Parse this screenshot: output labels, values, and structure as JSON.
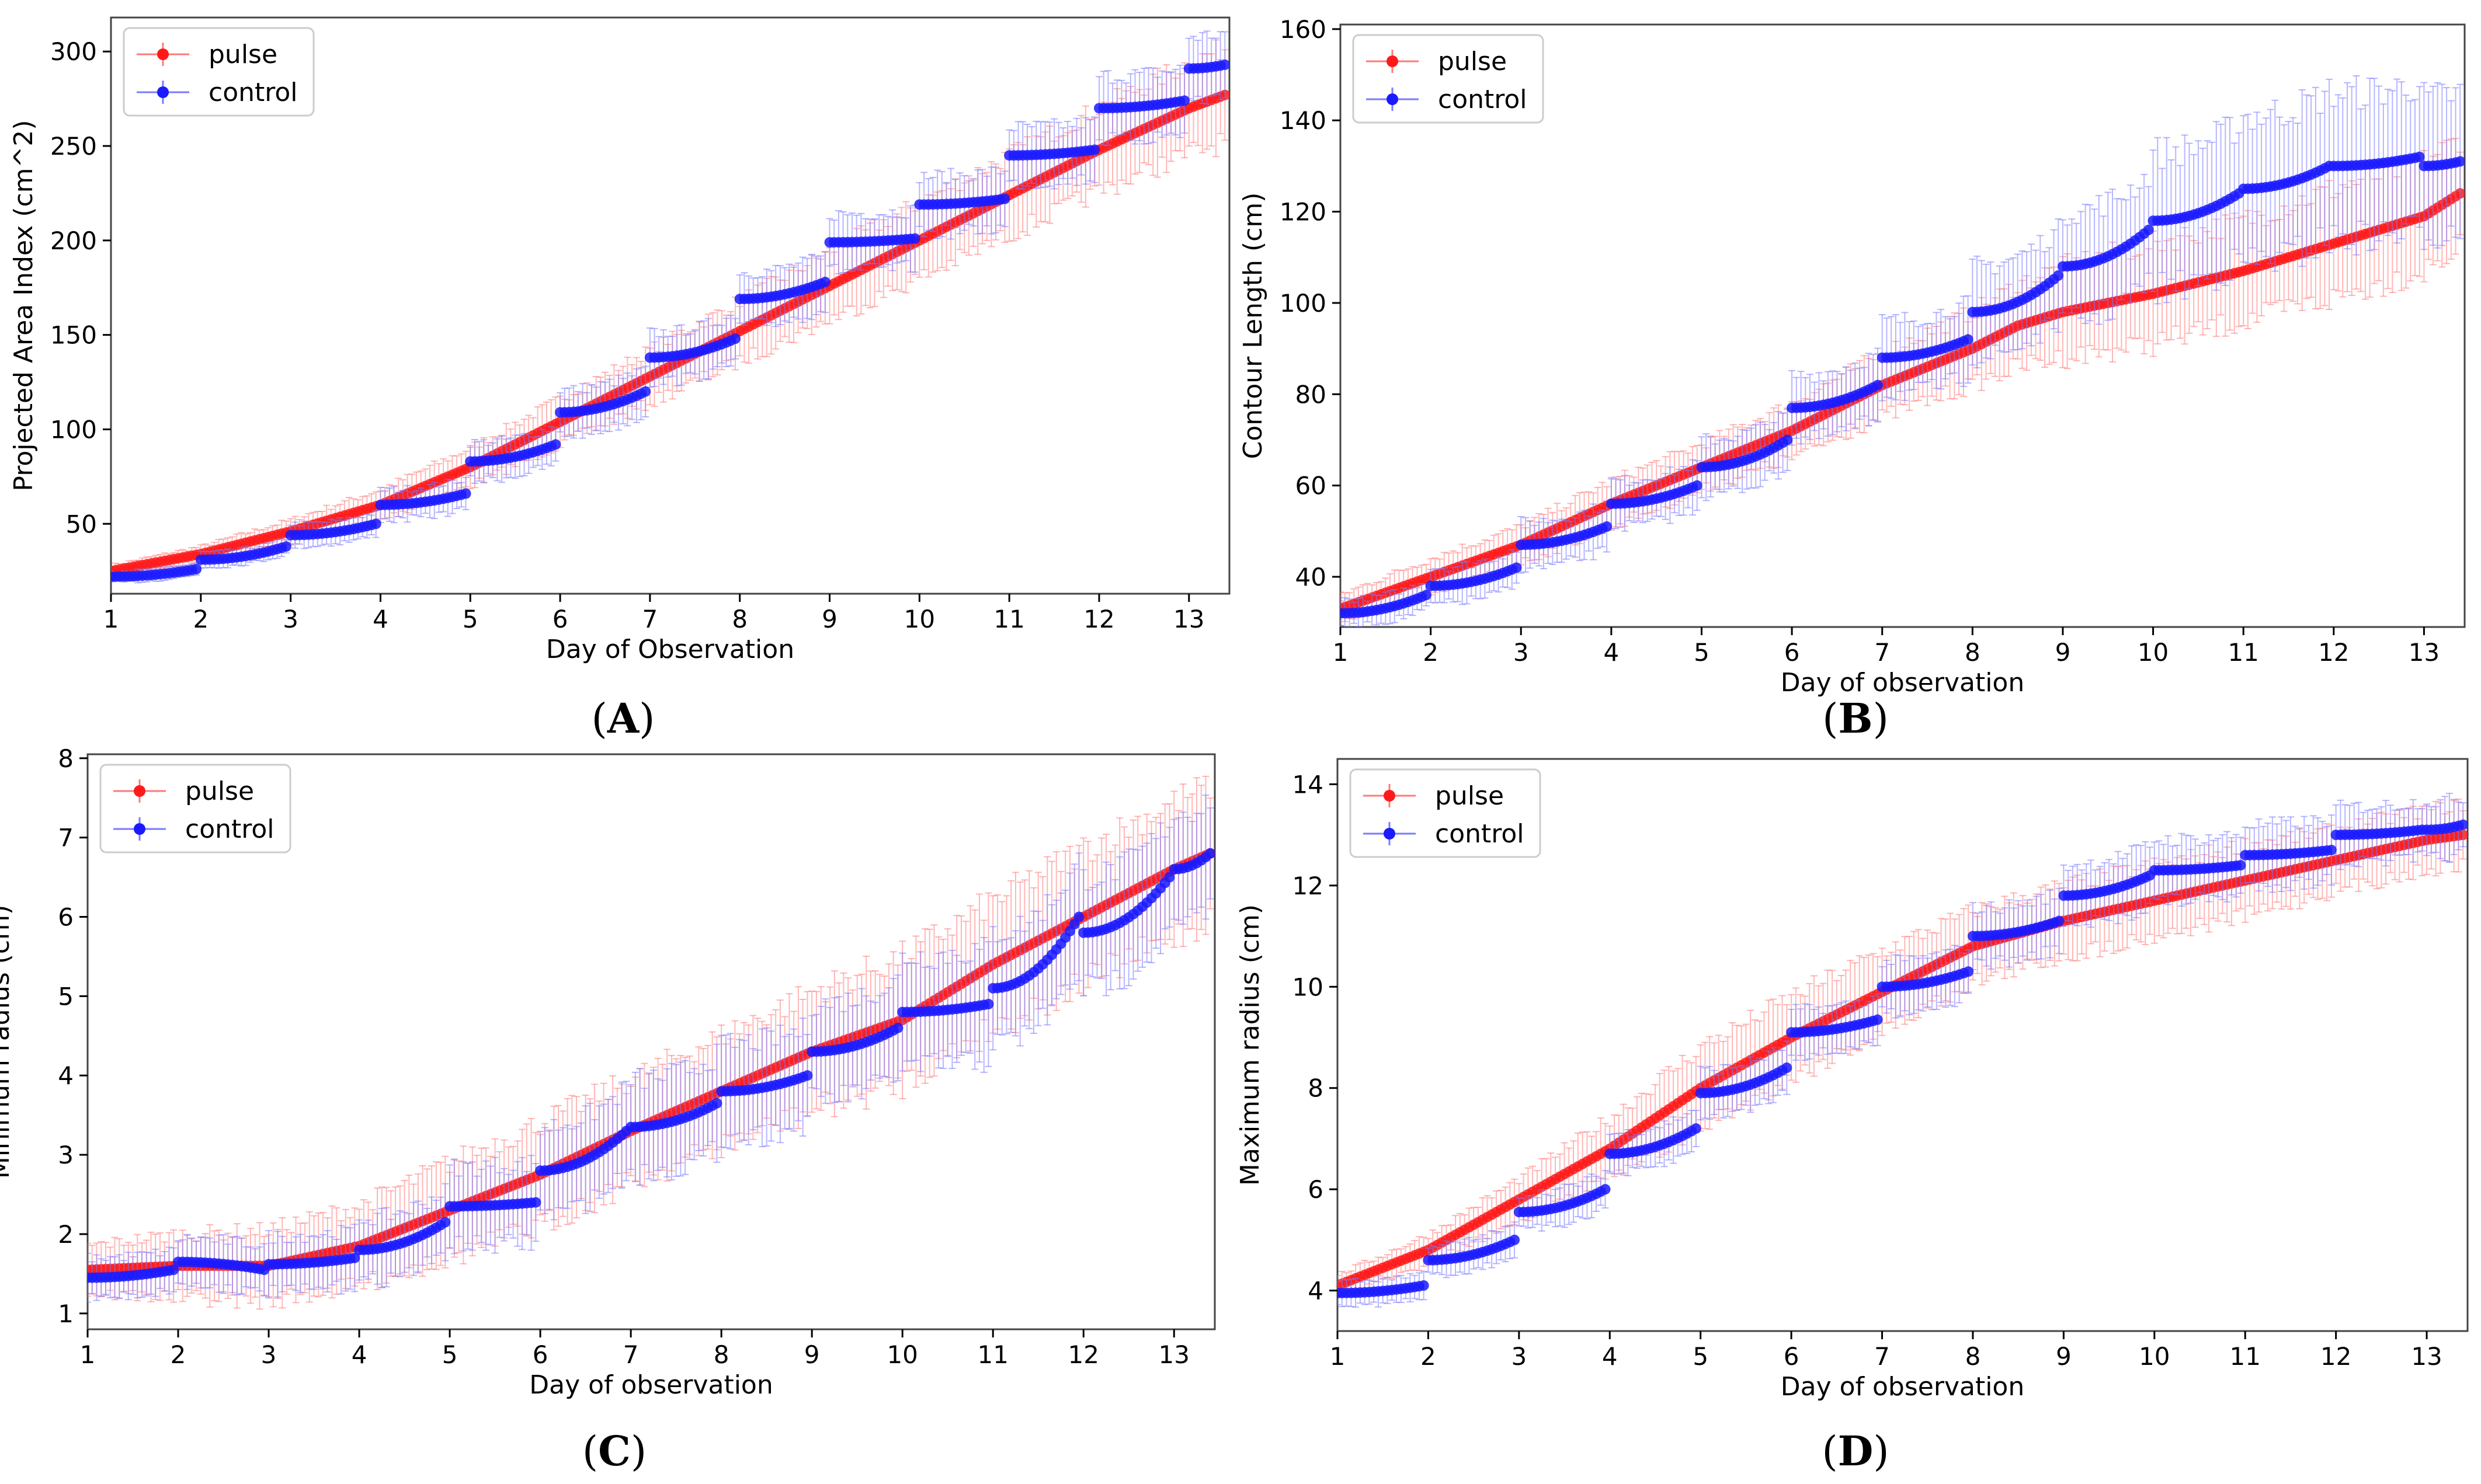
{
  "colors": {
    "pulse": "#ff1a1a",
    "pulse_err": "#ff7a7a",
    "control": "#1a1aff",
    "control_err": "#7a7aff",
    "frame": "#444444"
  },
  "chart_data": [
    {
      "type": "scatter",
      "panel": "A",
      "caption_letter": "A",
      "xlabel": "Day of Observation",
      "ylabel": "Projected Area Index (cm^2)",
      "xlim": [
        1,
        13.45
      ],
      "ylim": [
        13,
        318
      ],
      "xticks": [
        "1",
        "2",
        "3",
        "4",
        "5",
        "6",
        "7",
        "8",
        "9",
        "10",
        "11",
        "12",
        "13"
      ],
      "yticks": [
        "50",
        "100",
        "150",
        "200",
        "250",
        "300"
      ],
      "legend": [
        "pulse",
        "control"
      ],
      "legend_position": "upper-left",
      "series": [
        {
          "name": "pulse",
          "x": [
            1,
            2,
            3,
            4,
            5,
            6,
            7,
            8,
            9,
            10,
            11,
            12,
            13,
            13.4
          ],
          "y": [
            25,
            34,
            46,
            60,
            80,
            104,
            128,
            152,
            176,
            200,
            224,
            248,
            270,
            277
          ],
          "err": [
            3,
            4,
            6,
            8,
            10,
            12,
            14,
            16,
            18,
            20,
            21,
            22,
            24,
            25
          ]
        },
        {
          "name": "control",
          "steps": [
            {
              "x0": 1.0,
              "x1": 1.95,
              "y0": 22,
              "y1": 26,
              "err": 3
            },
            {
              "x0": 2.0,
              "x1": 2.95,
              "y0": 31,
              "y1": 38,
              "err": 4
            },
            {
              "x0": 3.0,
              "x1": 3.95,
              "y0": 44,
              "y1": 50,
              "err": 6
            },
            {
              "x0": 4.0,
              "x1": 4.95,
              "y0": 60,
              "y1": 66,
              "err": 8
            },
            {
              "x0": 5.0,
              "x1": 5.95,
              "y0": 83,
              "y1": 92,
              "err": 10
            },
            {
              "x0": 6.0,
              "x1": 6.95,
              "y0": 109,
              "y1": 120,
              "err": 12
            },
            {
              "x0": 7.0,
              "x1": 7.95,
              "y0": 138,
              "y1": 148,
              "err": 13
            },
            {
              "x0": 8.0,
              "x1": 8.95,
              "y0": 169,
              "y1": 178,
              "err": 14
            },
            {
              "x0": 9.0,
              "x1": 9.95,
              "y0": 199,
              "y1": 201,
              "err": 15
            },
            {
              "x0": 10.0,
              "x1": 10.95,
              "y0": 219,
              "y1": 222,
              "err": 15
            },
            {
              "x0": 11.0,
              "x1": 11.95,
              "y0": 245,
              "y1": 248,
              "err": 15
            },
            {
              "x0": 12.0,
              "x1": 12.95,
              "y0": 270,
              "y1": 274,
              "err": 17
            },
            {
              "x0": 13.0,
              "x1": 13.4,
              "y0": 291,
              "y1": 293,
              "err": 17
            }
          ]
        }
      ]
    },
    {
      "type": "scatter",
      "panel": "B",
      "caption_letter": "B",
      "xlabel": "Day of observation",
      "ylabel": "Contour Length (cm)",
      "xlim": [
        1,
        13.45
      ],
      "ylim": [
        29,
        161
      ],
      "xticks": [
        "1",
        "2",
        "3",
        "4",
        "5",
        "6",
        "7",
        "8",
        "9",
        "10",
        "11",
        "12",
        "13"
      ],
      "yticks": [
        "40",
        "60",
        "80",
        "100",
        "120",
        "140",
        "160"
      ],
      "legend": [
        "pulse",
        "control"
      ],
      "legend_position": "upper-left",
      "series": [
        {
          "name": "pulse",
          "x": [
            1,
            2,
            3,
            4,
            5,
            6,
            7,
            8,
            8.5,
            9,
            10,
            11,
            12,
            13,
            13.4
          ],
          "y": [
            33,
            40,
            47,
            56,
            64,
            72,
            82,
            90,
            95,
            98,
            102,
            107,
            113,
            119,
            124
          ],
          "err": [
            3,
            4,
            4,
            5,
            5,
            6,
            7,
            8,
            9,
            10,
            11,
            11,
            12,
            12,
            12
          ]
        },
        {
          "name": "control",
          "steps": [
            {
              "x0": 1.0,
              "x1": 1.95,
              "y0": 32,
              "y1": 36,
              "err": 3
            },
            {
              "x0": 2.0,
              "x1": 2.95,
              "y0": 38,
              "y1": 42,
              "err": 4
            },
            {
              "x0": 3.0,
              "x1": 3.95,
              "y0": 47,
              "y1": 51,
              "err": 5
            },
            {
              "x0": 4.0,
              "x1": 4.95,
              "y0": 56,
              "y1": 60,
              "err": 5
            },
            {
              "x0": 5.0,
              "x1": 5.95,
              "y0": 64,
              "y1": 70,
              "err": 6
            },
            {
              "x0": 6.0,
              "x1": 6.95,
              "y0": 77,
              "y1": 82,
              "err": 7
            },
            {
              "x0": 7.0,
              "x1": 7.95,
              "y0": 88,
              "y1": 92,
              "err": 8
            },
            {
              "x0": 8.0,
              "x1": 8.95,
              "y0": 98,
              "y1": 106,
              "err": 10
            },
            {
              "x0": 9.0,
              "x1": 9.95,
              "y0": 108,
              "y1": 116,
              "err": 12
            },
            {
              "x0": 10.0,
              "x1": 10.95,
              "y0": 118,
              "y1": 124,
              "err": 15
            },
            {
              "x0": 11.0,
              "x1": 11.95,
              "y0": 125,
              "y1": 130,
              "err": 16
            },
            {
              "x0": 12.0,
              "x1": 12.95,
              "y0": 130,
              "y1": 132,
              "err": 16
            },
            {
              "x0": 13.0,
              "x1": 13.4,
              "y0": 130,
              "y1": 131,
              "err": 15
            }
          ]
        }
      ]
    },
    {
      "type": "scatter",
      "panel": "C",
      "caption_letter": "C",
      "xlabel": "Day of observation",
      "ylabel": "Minimum radius (cm)",
      "xlim": [
        1,
        13.45
      ],
      "ylim": [
        0.8,
        8.05
      ],
      "xticks": [
        "1",
        "2",
        "3",
        "4",
        "5",
        "6",
        "7",
        "8",
        "9",
        "10",
        "11",
        "12",
        "13"
      ],
      "yticks": [
        "1",
        "2",
        "3",
        "4",
        "5",
        "6",
        "7",
        "8"
      ],
      "legend": [
        "pulse",
        "control"
      ],
      "legend_position": "upper-left",
      "series": [
        {
          "name": "pulse",
          "x": [
            1,
            2,
            3,
            4,
            5,
            6,
            7,
            8,
            9,
            10,
            11,
            12,
            13,
            13.4
          ],
          "y": [
            1.55,
            1.6,
            1.6,
            1.85,
            2.3,
            2.75,
            3.3,
            3.8,
            4.3,
            4.7,
            5.4,
            6.0,
            6.6,
            6.8
          ],
          "err": [
            0.3,
            0.4,
            0.45,
            0.5,
            0.6,
            0.65,
            0.65,
            0.7,
            0.75,
            0.8,
            0.8,
            0.85,
            0.85,
            0.85
          ]
        },
        {
          "name": "control",
          "steps": [
            {
              "x0": 1.0,
              "x1": 1.95,
              "y0": 1.45,
              "y1": 1.55,
              "err": 0.25
            },
            {
              "x0": 2.0,
              "x1": 2.95,
              "y0": 1.65,
              "y1": 1.55,
              "err": 0.3
            },
            {
              "x0": 3.0,
              "x1": 3.95,
              "y0": 1.62,
              "y1": 1.7,
              "err": 0.35
            },
            {
              "x0": 4.0,
              "x1": 4.95,
              "y0": 1.8,
              "y1": 2.15,
              "err": 0.4
            },
            {
              "x0": 5.0,
              "x1": 5.95,
              "y0": 2.35,
              "y1": 2.4,
              "err": 0.5
            },
            {
              "x0": 6.0,
              "x1": 6.95,
              "y0": 2.8,
              "y1": 3.3,
              "err": 0.55
            },
            {
              "x0": 7.0,
              "x1": 7.95,
              "y0": 3.35,
              "y1": 3.65,
              "err": 0.6
            },
            {
              "x0": 8.0,
              "x1": 8.95,
              "y0": 3.8,
              "y1": 4.0,
              "err": 0.6
            },
            {
              "x0": 9.0,
              "x1": 9.95,
              "y0": 4.3,
              "y1": 4.6,
              "err": 0.6
            },
            {
              "x0": 10.0,
              "x1": 10.95,
              "y0": 4.8,
              "y1": 4.9,
              "err": 0.7
            },
            {
              "x0": 11.0,
              "x1": 11.95,
              "y0": 5.1,
              "y1": 6.0,
              "err": 0.7
            },
            {
              "x0": 12.0,
              "x1": 12.95,
              "y0": 5.8,
              "y1": 6.5,
              "err": 0.7
            },
            {
              "x0": 13.0,
              "x1": 13.4,
              "y0": 6.6,
              "y1": 6.8,
              "err": 0.7
            }
          ]
        }
      ]
    },
    {
      "type": "scatter",
      "panel": "D",
      "caption_letter": "D",
      "xlabel": "Day of observation",
      "ylabel": "Maximum radius (cm)",
      "xlim": [
        1,
        13.45
      ],
      "ylim": [
        3.2,
        14.5
      ],
      "xticks": [
        "1",
        "2",
        "3",
        "4",
        "5",
        "6",
        "7",
        "8",
        "9",
        "10",
        "11",
        "12",
        "13"
      ],
      "yticks": [
        "4",
        "6",
        "8",
        "10",
        "12",
        "14"
      ],
      "legend": [
        "pulse",
        "control"
      ],
      "legend_position": "upper-left",
      "series": [
        {
          "name": "pulse",
          "x": [
            1,
            2,
            3,
            4,
            5,
            6,
            7,
            8,
            9,
            10,
            11,
            12,
            13,
            13.4
          ],
          "y": [
            4.1,
            4.8,
            5.8,
            6.8,
            8.0,
            9.0,
            9.9,
            10.8,
            11.3,
            11.7,
            12.1,
            12.5,
            12.9,
            13.0
          ],
          "err": [
            0.2,
            0.3,
            0.4,
            0.6,
            0.8,
            0.8,
            0.8,
            0.7,
            0.7,
            0.7,
            0.7,
            0.6,
            0.6,
            0.6
          ]
        },
        {
          "name": "control",
          "steps": [
            {
              "x0": 1.0,
              "x1": 1.95,
              "y0": 3.95,
              "y1": 4.1,
              "err": 0.25
            },
            {
              "x0": 2.0,
              "x1": 2.95,
              "y0": 4.6,
              "y1": 5.0,
              "err": 0.3
            },
            {
              "x0": 3.0,
              "x1": 3.95,
              "y0": 5.55,
              "y1": 6.0,
              "err": 0.35
            },
            {
              "x0": 4.0,
              "x1": 4.95,
              "y0": 6.7,
              "y1": 7.2,
              "err": 0.4
            },
            {
              "x0": 5.0,
              "x1": 5.95,
              "y0": 7.9,
              "y1": 8.4,
              "err": 0.45
            },
            {
              "x0": 6.0,
              "x1": 6.95,
              "y0": 9.1,
              "y1": 9.35,
              "err": 0.45
            },
            {
              "x0": 7.0,
              "x1": 7.95,
              "y0": 10.0,
              "y1": 10.3,
              "err": 0.5
            },
            {
              "x0": 8.0,
              "x1": 8.95,
              "y0": 11.0,
              "y1": 11.3,
              "err": 0.55
            },
            {
              "x0": 9.0,
              "x1": 9.95,
              "y0": 11.8,
              "y1": 12.2,
              "err": 0.6
            },
            {
              "x0": 10.0,
              "x1": 10.95,
              "y0": 12.3,
              "y1": 12.4,
              "err": 0.6
            },
            {
              "x0": 11.0,
              "x1": 11.95,
              "y0": 12.6,
              "y1": 12.7,
              "err": 0.6
            },
            {
              "x0": 12.0,
              "x1": 12.95,
              "y0": 13.0,
              "y1": 13.1,
              "err": 0.55
            },
            {
              "x0": 13.0,
              "x1": 13.4,
              "y0": 13.1,
              "y1": 13.2,
              "err": 0.55
            }
          ]
        }
      ]
    }
  ]
}
